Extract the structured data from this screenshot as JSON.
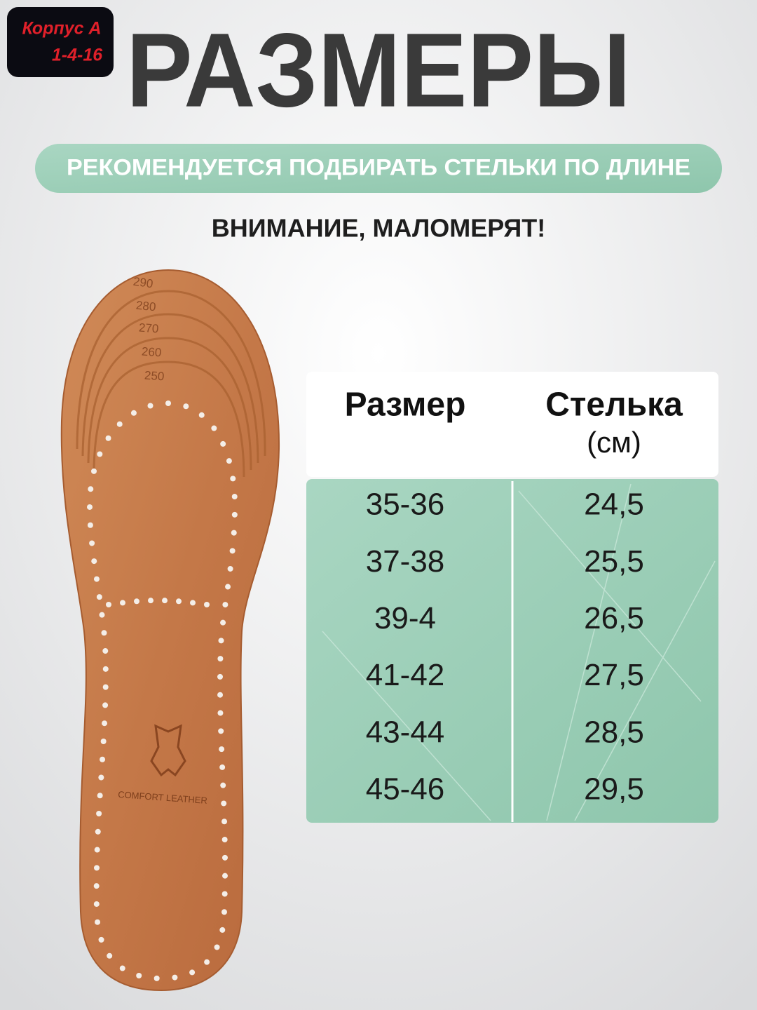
{
  "badge": {
    "line1": "Корпус А",
    "line2": "1-4-16"
  },
  "header": {
    "title": "РАЗМЕРЫ",
    "banner": "РЕКОМЕНДУЕТСЯ ПОДБИРАТЬ СТЕЛЬКИ ПО ДЛИНЕ",
    "warning": "ВНИМАНИЕ, МАЛОМЕРЯТ!"
  },
  "insole": {
    "size_marks": [
      "290",
      "280",
      "270",
      "260",
      "250"
    ],
    "logo_text": "COMFORT LEATHER"
  },
  "table": {
    "columns": [
      "Размер",
      "Стелька"
    ],
    "unit": "(см)",
    "rows": [
      [
        "35-36",
        "24,5"
      ],
      [
        "37-38",
        "25,5"
      ],
      [
        "39-4",
        "26,5"
      ],
      [
        "41-42",
        "27,5"
      ],
      [
        "43-44",
        "28,5"
      ],
      [
        "45-46",
        "29,5"
      ]
    ]
  }
}
